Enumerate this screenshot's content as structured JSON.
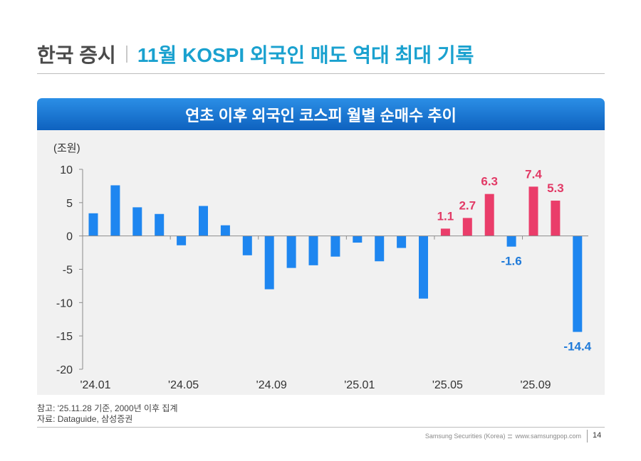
{
  "header": {
    "section": "한국 증시",
    "title": "11월 KOSPI 외국인 매도 역대 최대 기록"
  },
  "chart_data": {
    "type": "bar",
    "title": "연초 이후 외국인 코스피 월별 순매수 추이",
    "xlabel": "",
    "ylabel": "(조원)",
    "ylim": [
      -20,
      10
    ],
    "yticks": [
      10,
      5,
      0,
      -5,
      -10,
      -15,
      -20
    ],
    "grid": false,
    "categories": [
      "'24.01",
      "",
      "",
      "",
      "'24.05",
      "",
      "",
      "",
      "'24.09",
      "",
      "",
      "",
      "'25.01",
      "",
      "",
      "",
      "'25.05",
      "",
      "",
      "",
      "'25.09",
      "",
      ""
    ],
    "values": [
      3.4,
      7.6,
      4.3,
      3.3,
      -1.4,
      4.5,
      1.6,
      -2.9,
      -8.0,
      -4.8,
      -4.4,
      -3.1,
      -1.0,
      -3.8,
      -1.8,
      -9.4,
      1.1,
      2.7,
      6.3,
      -1.6,
      7.4,
      5.3,
      -14.4
    ],
    "highlighted": [
      false,
      false,
      false,
      false,
      false,
      false,
      false,
      false,
      false,
      false,
      false,
      false,
      false,
      false,
      false,
      false,
      true,
      true,
      true,
      false,
      true,
      true,
      false
    ],
    "data_labels": [
      null,
      null,
      null,
      null,
      null,
      null,
      null,
      null,
      null,
      null,
      null,
      null,
      null,
      null,
      null,
      null,
      "1.1",
      "2.7",
      "6.3",
      "-1.6",
      "7.4",
      "5.3",
      "-14.4"
    ],
    "colors": {
      "default": "#1e86f0",
      "highlight": "#ea3d6a",
      "label_default": "#1f7ad9",
      "label_highlight": "#e23a66"
    }
  },
  "footer": {
    "note": "참고: '25.11.28 기준, 2000년 이후 집계",
    "source": "자료: Dataguide, 삼성증권",
    "company": "Samsung Securities (Korea)",
    "website": "www.samsungpop.com",
    "page_number": "14"
  }
}
